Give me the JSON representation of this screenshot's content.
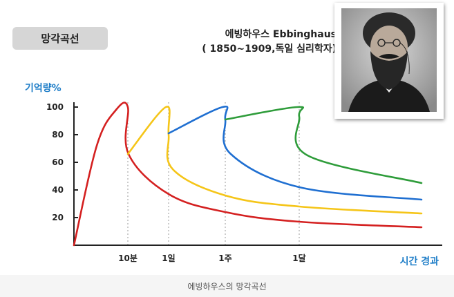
{
  "header": {
    "badge": "망각곡선",
    "person_name": "에빙하우스 Ebbinghaus",
    "person_detail": "( 1850~1909,독일 심리학자)"
  },
  "photo": {
    "icon": "portrait-photo"
  },
  "caption": "에빙하우스의 망각곡선",
  "chart_data": {
    "type": "line",
    "title": "",
    "ylabel": "기억량%",
    "xlabel": "시간 경과",
    "ylim": [
      0,
      100
    ],
    "yticks": [
      20,
      40,
      60,
      80,
      100
    ],
    "review_points": [
      "10분",
      "1일",
      "1주",
      "1달"
    ],
    "grid": "vertical dotted lines at review points",
    "series": [
      {
        "color": "#d42020",
        "points": [
          [
            "start",
            0
          ],
          [
            "~7분",
            72
          ],
          [
            "~9분",
            98
          ],
          [
            "10분",
            100
          ],
          [
            "10분+",
            66
          ],
          [
            "1일",
            37
          ],
          [
            "1주",
            24
          ],
          [
            "1달",
            17
          ],
          [
            "end",
            13
          ]
        ]
      },
      {
        "color": "#f5c518",
        "points": [
          [
            "10분",
            66
          ],
          [
            "1일-",
            100
          ],
          [
            "1일",
            80
          ],
          [
            "1일+",
            55
          ],
          [
            "1주",
            36
          ],
          [
            "1달",
            28
          ],
          [
            "end",
            23
          ]
        ]
      },
      {
        "color": "#1f6fd1",
        "points": [
          [
            "1일",
            81
          ],
          [
            "1주-",
            100
          ],
          [
            "1주",
            91
          ],
          [
            "1주+",
            66
          ],
          [
            "1달",
            42
          ],
          [
            "end",
            33
          ]
        ]
      },
      {
        "color": "#2e9c3a",
        "points": [
          [
            "1주",
            91
          ],
          [
            "1달-",
            100
          ],
          [
            "1달",
            93
          ],
          [
            "1달+",
            65
          ],
          [
            "end",
            45
          ]
        ]
      }
    ]
  }
}
